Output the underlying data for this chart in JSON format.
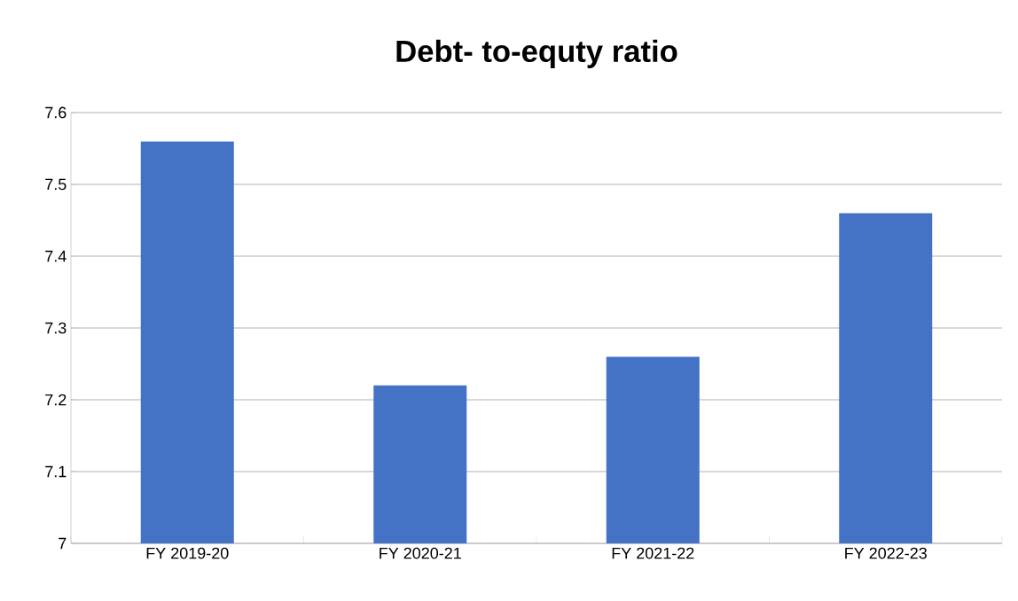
{
  "chart_data": {
    "type": "bar",
    "title": "Debt- to-equty ratio",
    "categories": [
      "FY 2019-20",
      "FY 2020-21",
      "FY 2021-22",
      "FY 2022-23"
    ],
    "values": [
      7.56,
      7.22,
      7.26,
      7.46
    ],
    "color": "#4472c4",
    "ylim": [
      7,
      7.6
    ],
    "yticks": [
      7,
      7.1,
      7.2,
      7.3,
      7.4,
      7.5,
      7.6
    ],
    "grid": "y"
  }
}
